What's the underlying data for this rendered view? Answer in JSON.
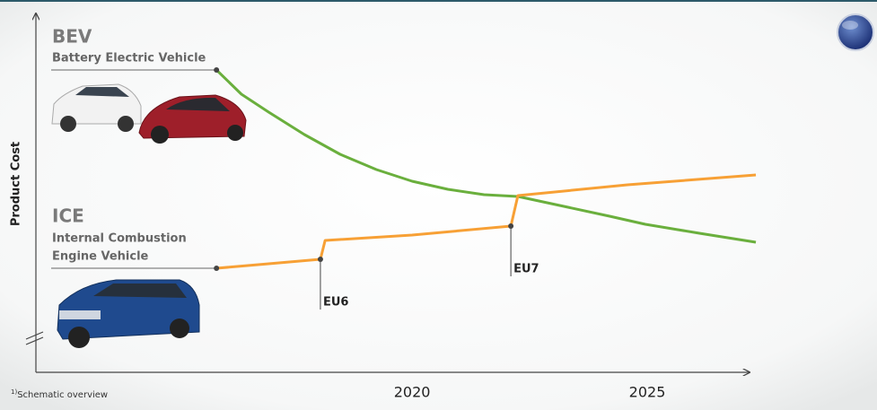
{
  "chart_data": {
    "type": "line",
    "y_label": "Product Cost",
    "xlim": [
      2012,
      2027.5
    ],
    "ylim": [
      0,
      100
    ],
    "xticks": [
      2020,
      2025
    ],
    "series": [
      {
        "name": "BEV",
        "subtitle": "Battery Electric Vehicle",
        "color": "#6aaf3d",
        "x": [
          2015.84,
          2016.37,
          2016.95,
          2017.71,
          2018.47,
          2019.24,
          2020,
          2020.76,
          2021.53,
          2022.25,
          2023.05,
          2024.2,
          2024.96,
          2026.11,
          2027.31
        ],
        "values": [
          84.25,
          77.5,
          72.5,
          66.25,
          60.75,
          56.5,
          53.25,
          51,
          49.5,
          49,
          46.75,
          43.5,
          41.25,
          38.75,
          36.25
        ]
      },
      {
        "name": "ICE",
        "subtitle": [
          "Internal Combustion",
          "Engine Vehicle"
        ],
        "color": "#f7a035",
        "x": [
          2015.84,
          2016.95,
          2018.05,
          2018.15,
          2020,
          2022.1,
          2022.25,
          2024.58,
          2027.31
        ],
        "values": [
          29,
          30.25,
          31.5,
          36.75,
          38.25,
          40.75,
          49.25,
          52.25,
          55
        ]
      }
    ],
    "annotations": [
      {
        "text": "EU6",
        "x": 2018.05,
        "y": 31.5
      },
      {
        "text": "EU7",
        "x": 2022.1,
        "y": 40.75
      }
    ],
    "footnote_marker": "1)",
    "footnote": "Schematic overview"
  }
}
